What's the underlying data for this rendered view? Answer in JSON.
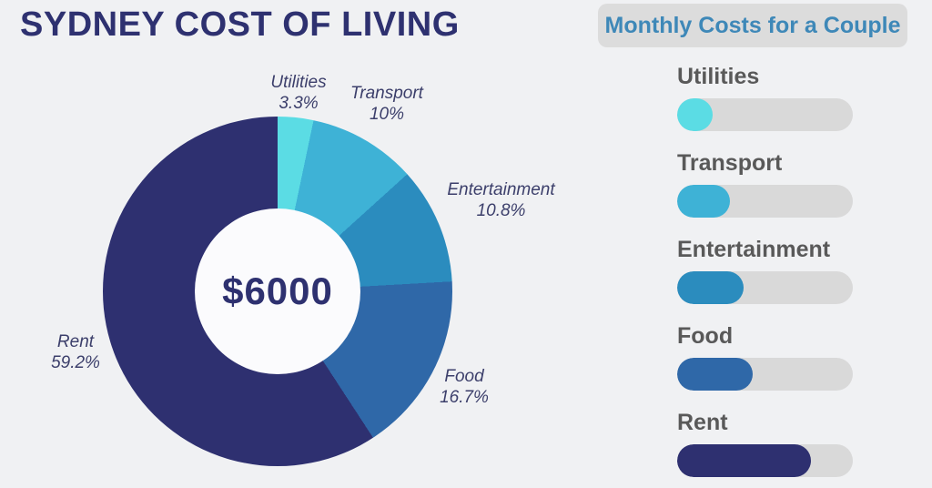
{
  "page": {
    "background": "#F0F1F3"
  },
  "title": "SYDNEY COST OF LIVING",
  "title_color": "#2E3170",
  "chart_data": {
    "type": "pie",
    "donut": true,
    "title": "SYDNEY COST OF LIVING",
    "center_total": "$6000",
    "categories": [
      "Utilities",
      "Transport",
      "Entertainment",
      "Food",
      "Rent"
    ],
    "values_percent": [
      3.3,
      10,
      10.8,
      16.7,
      59.2
    ],
    "colors": [
      "#5BDCE4",
      "#3EB2D6",
      "#2B8CBE",
      "#2F68A8",
      "#2E3070"
    ],
    "start_angle_deg": 0,
    "direction": "clockwise",
    "hole_color": "#FBFBFD",
    "center_text_color": "#2E3170",
    "callouts": [
      {
        "name": "Utilities",
        "pct": "3.3%"
      },
      {
        "name": "Transport",
        "pct": "10%"
      },
      {
        "name": "Entertainment",
        "pct": "10.8%"
      },
      {
        "name": "Food",
        "pct": "16.7%"
      },
      {
        "name": "Rent",
        "pct": "59.2%"
      }
    ]
  },
  "legend": {
    "title": "Monthly Costs for a Couple",
    "title_color": "#3E88B8",
    "title_bg": "#DCDCDC",
    "label_color": "#595959",
    "track_color": "#D9D9D9",
    "items": [
      {
        "label": "Utilities",
        "color": "#5BDCE4",
        "fill_percent": 20
      },
      {
        "label": "Transport",
        "color": "#3EB2D6",
        "fill_percent": 30
      },
      {
        "label": "Entertainment",
        "color": "#2B8CBE",
        "fill_percent": 38
      },
      {
        "label": "Food",
        "color": "#2F68A8",
        "fill_percent": 43
      },
      {
        "label": "Rent",
        "color": "#2E3070",
        "fill_percent": 76
      }
    ]
  }
}
